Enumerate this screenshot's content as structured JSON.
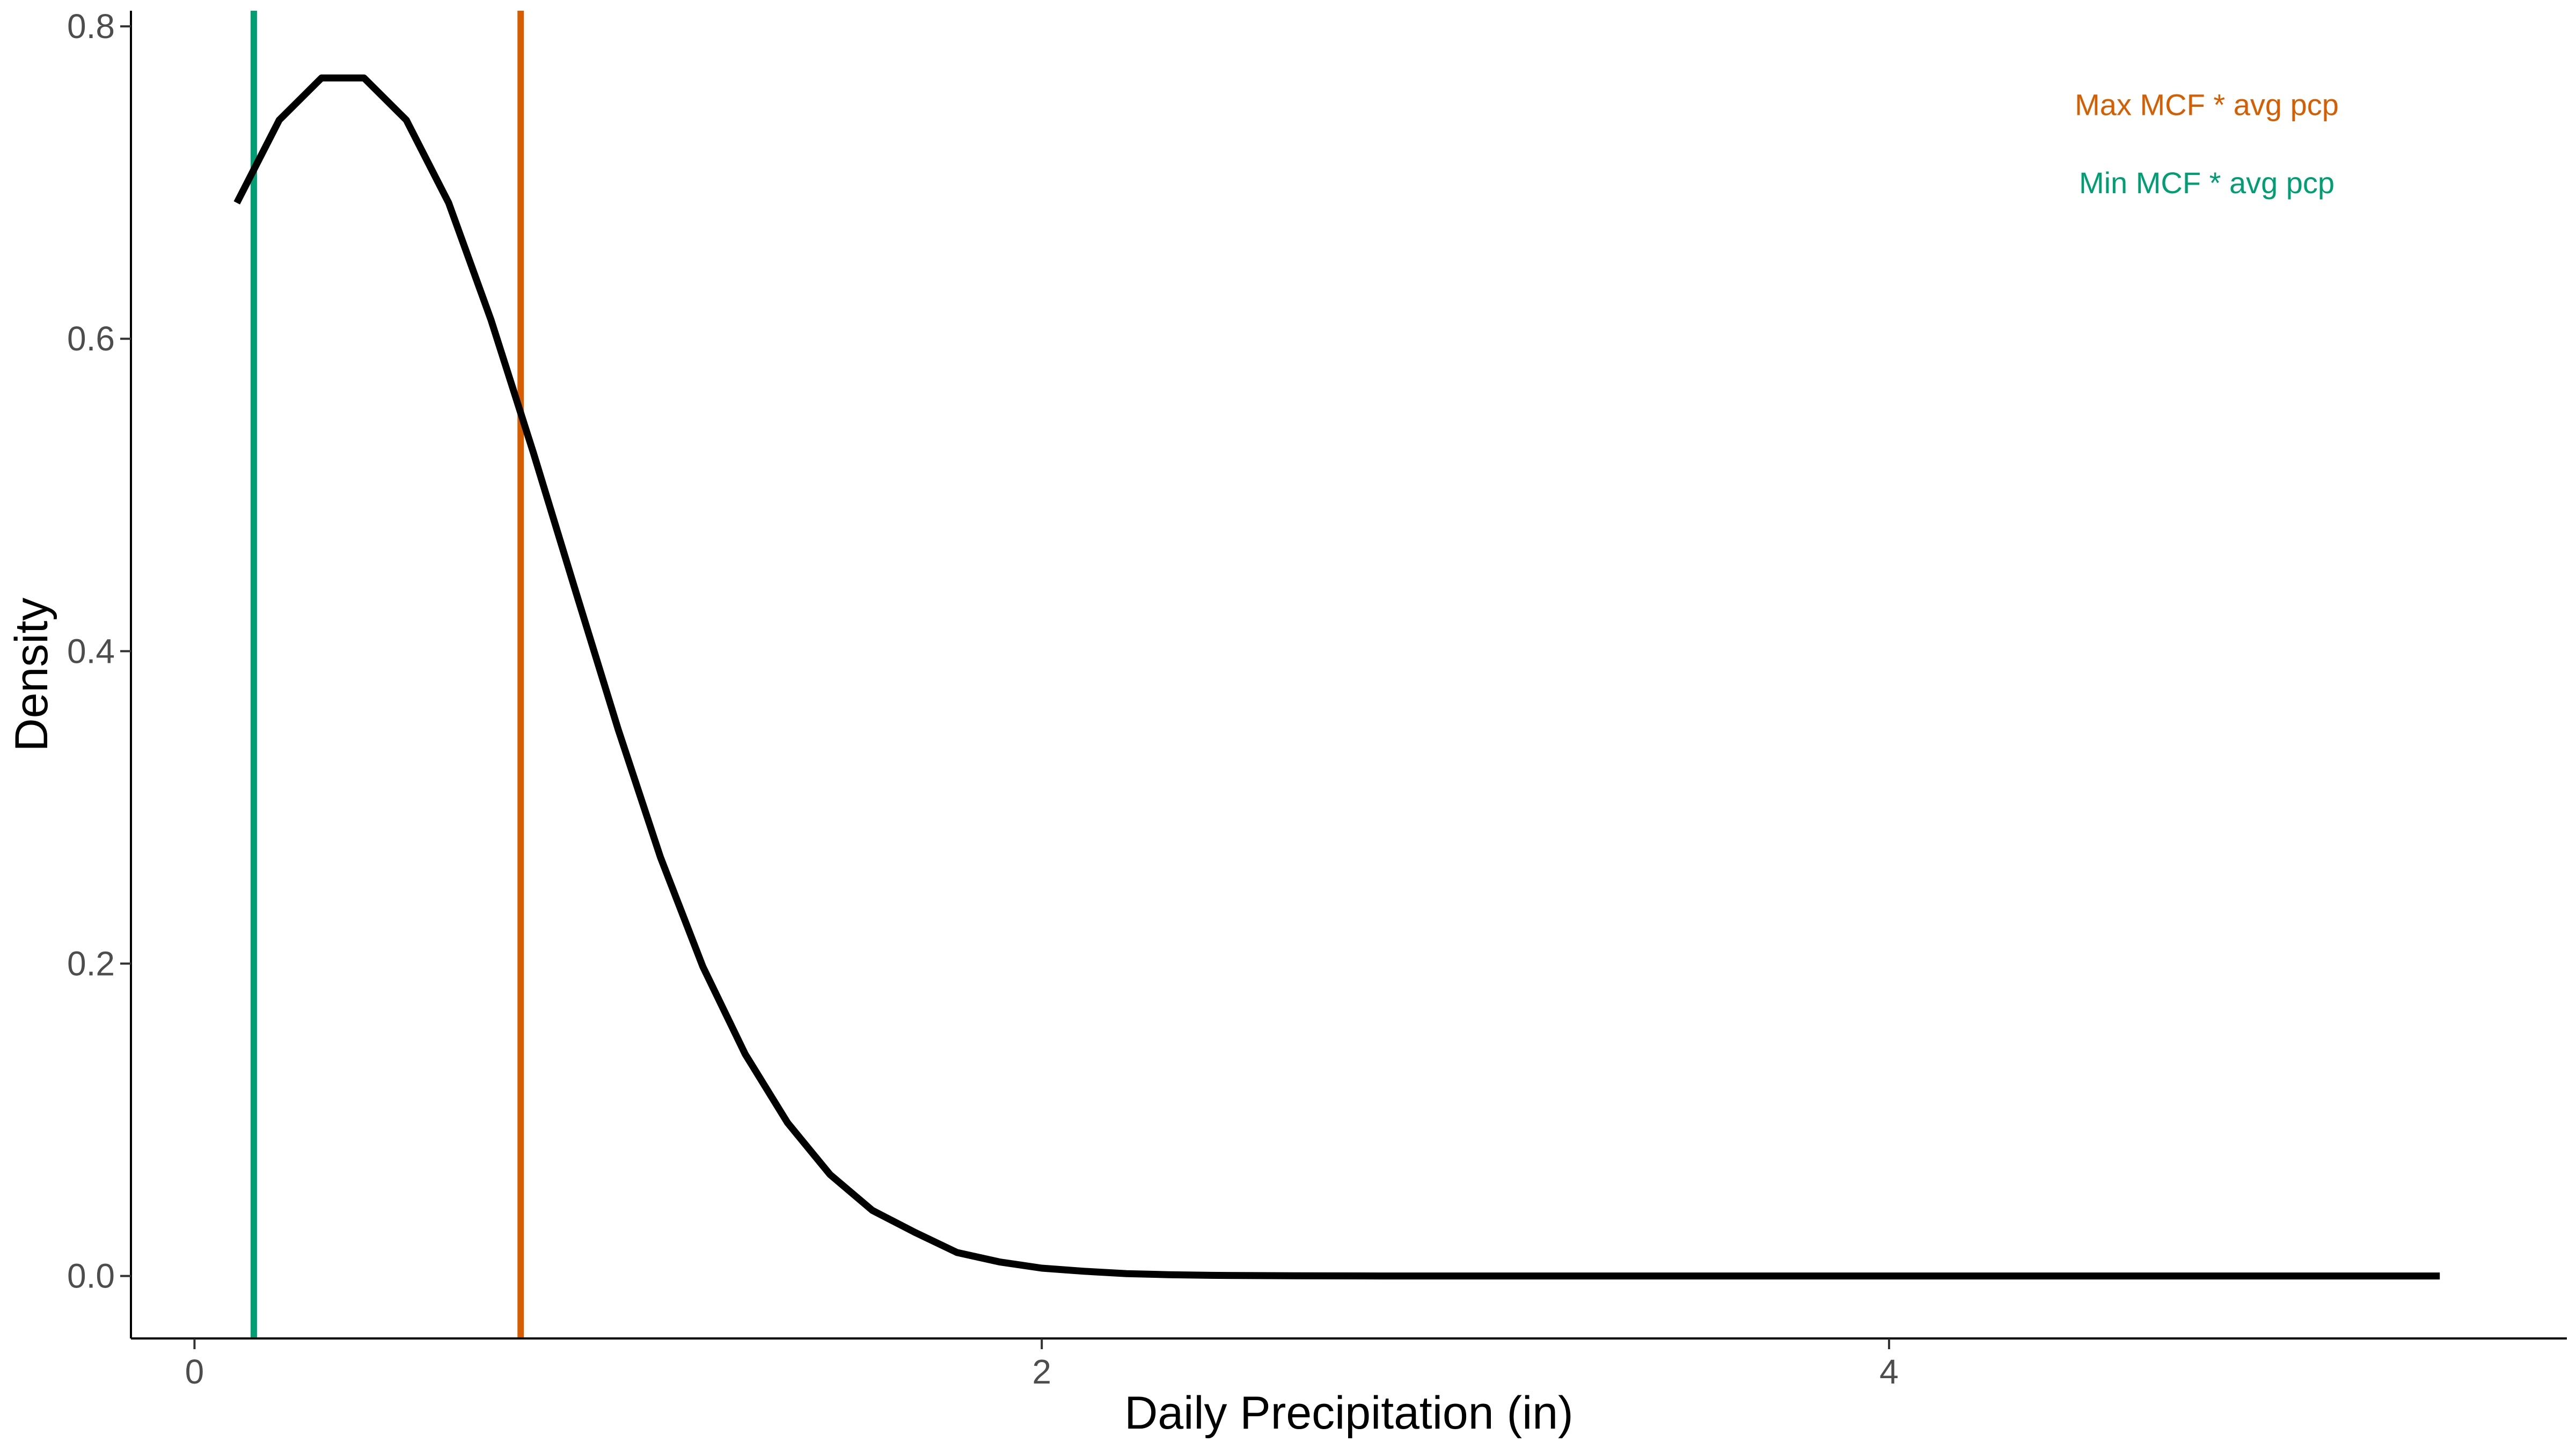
{
  "chart_data": {
    "type": "line",
    "title": "",
    "xlabel": "Daily Precipitation (in)",
    "ylabel": "Density",
    "xlim": [
      -0.15,
      5.6
    ],
    "ylim": [
      -0.04,
      0.81
    ],
    "x_ticks": [
      0,
      2,
      4
    ],
    "x_tick_labels": [
      "0",
      "2",
      "4"
    ],
    "y_ticks": [
      0.0,
      0.2,
      0.4,
      0.6,
      0.8
    ],
    "y_tick_labels": [
      "0.0",
      "0.2",
      "0.4",
      "0.6",
      "0.8"
    ],
    "grid": false,
    "series": [
      {
        "color": "#000000",
        "x": [
          0.1,
          0.2,
          0.3,
          0.4,
          0.5,
          0.6,
          0.7,
          0.8,
          0.9,
          1.0,
          1.1,
          1.2,
          1.3,
          1.4,
          1.5,
          1.6,
          1.7,
          1.8,
          1.9,
          2.0,
          2.1,
          2.2,
          2.3,
          2.4,
          2.6,
          2.8,
          3.0,
          3.5,
          4.0,
          4.5,
          5.0,
          5.3
        ],
        "y": [
          0.687,
          0.74,
          0.767,
          0.767,
          0.74,
          0.687,
          0.612,
          0.527,
          0.438,
          0.35,
          0.268,
          0.198,
          0.142,
          0.098,
          0.065,
          0.042,
          0.028,
          0.015,
          0.009,
          0.005,
          0.003,
          0.0015,
          0.0008,
          0.0004,
          0.0001,
          0.0,
          0.0,
          0.0,
          0.0,
          0.0,
          0.0,
          0.0
        ]
      }
    ],
    "vlines": [
      {
        "name": "Min MCF * avg pcp",
        "x": 0.14,
        "color": "#009E73"
      },
      {
        "name": "Max MCF * avg pcp",
        "x": 0.77,
        "color": "#D55E00"
      }
    ],
    "annotations": [
      {
        "text": "Max MCF * avg pcp",
        "x": 4.75,
        "y": 0.75,
        "color": "#D55E00"
      },
      {
        "text": "Min MCF * avg pcp",
        "x": 4.75,
        "y": 0.7,
        "color": "#009E73"
      }
    ]
  }
}
